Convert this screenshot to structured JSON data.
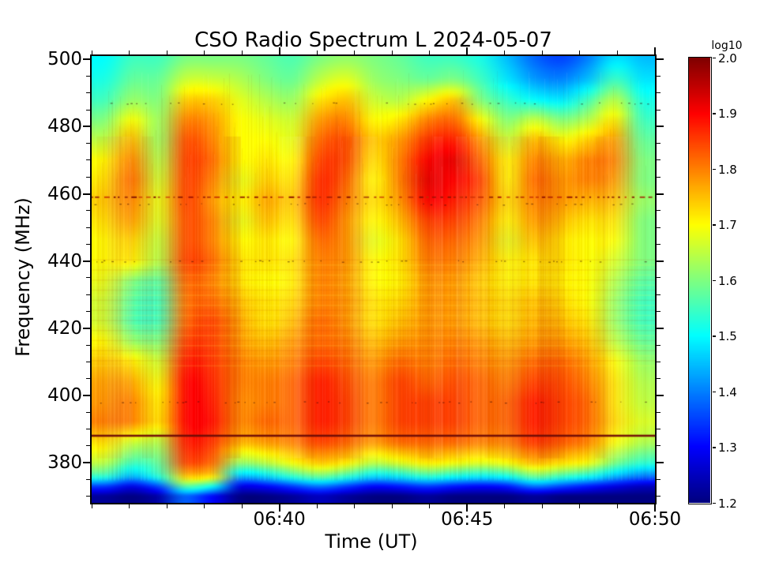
{
  "figure": {
    "title": "CSO Radio Spectrum L 2024-05-07",
    "xlabel": "Time (UT)",
    "ylabel": "Frequency (MHz)"
  },
  "colorbar": {
    "title": "log10",
    "min": 1.2,
    "max": 2.0,
    "tick_values": [
      2.0,
      1.9,
      1.8,
      1.7,
      1.6,
      1.5,
      1.4,
      1.3,
      1.2
    ],
    "tick_labels": [
      "2.0",
      "1.9",
      "1.8",
      "1.7",
      "1.6",
      "1.5",
      "1.4",
      "1.3",
      "1.2"
    ]
  },
  "chart_data": {
    "type": "heatmap",
    "colormap": "jet",
    "title": "CSO Radio Spectrum L 2024-05-07",
    "xlabel": "Time (UT)",
    "ylabel": "Frequency (MHz)",
    "value_scale": "log10",
    "value_range": [
      1.2,
      2.0
    ],
    "x_axis": {
      "unit": "UT minutes after 06:00",
      "range": [
        35,
        50
      ],
      "major_ticks": [
        {
          "minute": 40,
          "label": "06:40"
        },
        {
          "minute": 45,
          "label": "06:45"
        },
        {
          "minute": 50,
          "label": "06:50"
        }
      ],
      "minor_tick_step_minutes": 1
    },
    "y_axis": {
      "unit": "MHz",
      "range": [
        368,
        501
      ],
      "major_ticks": [
        380,
        400,
        420,
        440,
        460,
        480,
        500
      ],
      "minor_tick_step": 5
    },
    "rfi_lines": [
      {
        "freq_mhz": 388,
        "style": "solid"
      },
      {
        "freq_mhz": 459,
        "style": "dotted"
      },
      {
        "freq_mhz": 487,
        "style": "speckle"
      },
      {
        "freq_mhz": 457,
        "style": "speckle"
      },
      {
        "freq_mhz": 440,
        "style": "speckle"
      },
      {
        "freq_mhz": 398,
        "style": "speckle"
      }
    ],
    "banded_region_mhz": [
      409,
      439
    ],
    "grid": {
      "time_minutes": [
        35.0,
        35.75,
        36.5,
        37.25,
        38.0,
        38.75,
        39.5,
        40.25,
        41.0,
        41.75,
        42.5,
        43.25,
        44.0,
        44.75,
        45.5,
        46.25,
        47.0,
        47.75,
        48.5,
        49.25,
        50.0
      ],
      "freq_mhz": [
        500,
        494,
        488,
        482,
        476,
        470,
        464,
        458,
        452,
        446,
        440,
        434,
        428,
        422,
        416,
        410,
        404,
        398,
        392,
        386,
        380,
        376,
        373,
        370
      ],
      "log10_power": [
        [
          1.5,
          1.55,
          1.55,
          1.6,
          1.6,
          1.6,
          1.58,
          1.56,
          1.6,
          1.62,
          1.6,
          1.58,
          1.55,
          1.55,
          1.52,
          1.45,
          1.38,
          1.35,
          1.4,
          1.48,
          1.45
        ],
        [
          1.52,
          1.58,
          1.58,
          1.66,
          1.66,
          1.64,
          1.6,
          1.58,
          1.65,
          1.68,
          1.62,
          1.6,
          1.58,
          1.6,
          1.55,
          1.48,
          1.42,
          1.4,
          1.45,
          1.55,
          1.48
        ],
        [
          1.55,
          1.62,
          1.6,
          1.74,
          1.74,
          1.68,
          1.64,
          1.62,
          1.72,
          1.75,
          1.66,
          1.64,
          1.7,
          1.75,
          1.6,
          1.54,
          1.5,
          1.48,
          1.55,
          1.65,
          1.52
        ],
        [
          1.6,
          1.7,
          1.62,
          1.8,
          1.78,
          1.7,
          1.68,
          1.66,
          1.78,
          1.8,
          1.7,
          1.72,
          1.8,
          1.82,
          1.7,
          1.6,
          1.66,
          1.6,
          1.64,
          1.72,
          1.55
        ],
        [
          1.65,
          1.76,
          1.62,
          1.84,
          1.8,
          1.7,
          1.7,
          1.68,
          1.82,
          1.84,
          1.74,
          1.78,
          1.86,
          1.88,
          1.78,
          1.66,
          1.76,
          1.7,
          1.74,
          1.78,
          1.58
        ],
        [
          1.7,
          1.8,
          1.64,
          1.85,
          1.82,
          1.7,
          1.72,
          1.7,
          1.85,
          1.84,
          1.72,
          1.8,
          1.9,
          1.92,
          1.82,
          1.7,
          1.8,
          1.76,
          1.8,
          1.8,
          1.6
        ],
        [
          1.72,
          1.82,
          1.66,
          1.85,
          1.8,
          1.68,
          1.74,
          1.72,
          1.87,
          1.82,
          1.7,
          1.8,
          1.92,
          1.9,
          1.85,
          1.7,
          1.82,
          1.78,
          1.8,
          1.78,
          1.6
        ],
        [
          1.74,
          1.8,
          1.68,
          1.85,
          1.78,
          1.7,
          1.77,
          1.74,
          1.87,
          1.8,
          1.72,
          1.78,
          1.9,
          1.88,
          1.83,
          1.72,
          1.8,
          1.78,
          1.76,
          1.75,
          1.62
        ],
        [
          1.72,
          1.78,
          1.67,
          1.84,
          1.8,
          1.68,
          1.75,
          1.72,
          1.85,
          1.78,
          1.7,
          1.75,
          1.85,
          1.85,
          1.8,
          1.7,
          1.78,
          1.75,
          1.72,
          1.72,
          1.6
        ],
        [
          1.7,
          1.74,
          1.65,
          1.84,
          1.8,
          1.7,
          1.72,
          1.7,
          1.82,
          1.78,
          1.68,
          1.72,
          1.82,
          1.82,
          1.78,
          1.68,
          1.75,
          1.72,
          1.7,
          1.7,
          1.6
        ],
        [
          1.7,
          1.72,
          1.64,
          1.85,
          1.82,
          1.72,
          1.72,
          1.72,
          1.8,
          1.78,
          1.7,
          1.72,
          1.8,
          1.8,
          1.76,
          1.7,
          1.72,
          1.72,
          1.7,
          1.67,
          1.6
        ],
        [
          1.68,
          1.6,
          1.57,
          1.82,
          1.8,
          1.72,
          1.7,
          1.71,
          1.8,
          1.77,
          1.7,
          1.71,
          1.78,
          1.78,
          1.74,
          1.7,
          1.72,
          1.71,
          1.7,
          1.64,
          1.57
        ],
        [
          1.66,
          1.57,
          1.55,
          1.81,
          1.82,
          1.75,
          1.72,
          1.73,
          1.8,
          1.78,
          1.72,
          1.73,
          1.78,
          1.78,
          1.75,
          1.72,
          1.75,
          1.73,
          1.7,
          1.62,
          1.55
        ],
        [
          1.66,
          1.56,
          1.55,
          1.82,
          1.85,
          1.77,
          1.72,
          1.75,
          1.82,
          1.78,
          1.72,
          1.75,
          1.78,
          1.78,
          1.75,
          1.72,
          1.76,
          1.75,
          1.72,
          1.62,
          1.55
        ],
        [
          1.7,
          1.62,
          1.6,
          1.85,
          1.85,
          1.78,
          1.75,
          1.78,
          1.82,
          1.8,
          1.75,
          1.78,
          1.79,
          1.8,
          1.78,
          1.75,
          1.78,
          1.78,
          1.75,
          1.65,
          1.58
        ],
        [
          1.74,
          1.72,
          1.66,
          1.88,
          1.86,
          1.8,
          1.78,
          1.8,
          1.85,
          1.82,
          1.78,
          1.82,
          1.8,
          1.82,
          1.8,
          1.78,
          1.82,
          1.82,
          1.78,
          1.7,
          1.62
        ],
        [
          1.77,
          1.77,
          1.69,
          1.9,
          1.87,
          1.8,
          1.8,
          1.82,
          1.88,
          1.84,
          1.8,
          1.85,
          1.82,
          1.84,
          1.82,
          1.8,
          1.85,
          1.84,
          1.8,
          1.72,
          1.64
        ],
        [
          1.78,
          1.8,
          1.71,
          1.9,
          1.88,
          1.79,
          1.8,
          1.82,
          1.88,
          1.85,
          1.8,
          1.85,
          1.85,
          1.85,
          1.82,
          1.82,
          1.88,
          1.85,
          1.82,
          1.72,
          1.65
        ],
        [
          1.8,
          1.8,
          1.72,
          1.9,
          1.89,
          1.79,
          1.82,
          1.82,
          1.88,
          1.85,
          1.8,
          1.85,
          1.85,
          1.85,
          1.82,
          1.82,
          1.88,
          1.85,
          1.82,
          1.73,
          1.67
        ],
        [
          1.72,
          1.66,
          1.64,
          1.88,
          1.86,
          1.76,
          1.78,
          1.8,
          1.85,
          1.82,
          1.78,
          1.82,
          1.82,
          1.82,
          1.8,
          1.8,
          1.86,
          1.83,
          1.8,
          1.7,
          1.64
        ],
        [
          1.65,
          1.55,
          1.58,
          1.85,
          1.82,
          1.62,
          1.65,
          1.7,
          1.75,
          1.72,
          1.65,
          1.68,
          1.72,
          1.7,
          1.68,
          1.7,
          1.76,
          1.73,
          1.7,
          1.6,
          1.54
        ],
        [
          1.55,
          1.45,
          1.54,
          1.76,
          1.74,
          1.45,
          1.48,
          1.55,
          1.6,
          1.55,
          1.48,
          1.5,
          1.55,
          1.52,
          1.5,
          1.52,
          1.6,
          1.56,
          1.52,
          1.45,
          1.4
        ],
        [
          1.35,
          1.28,
          1.36,
          1.58,
          1.52,
          1.28,
          1.3,
          1.35,
          1.4,
          1.35,
          1.3,
          1.32,
          1.35,
          1.32,
          1.3,
          1.32,
          1.4,
          1.36,
          1.32,
          1.28,
          1.25
        ],
        [
          1.22,
          1.2,
          1.23,
          1.38,
          1.3,
          1.2,
          1.2,
          1.22,
          1.25,
          1.22,
          1.2,
          1.2,
          1.22,
          1.2,
          1.2,
          1.2,
          1.22,
          1.2,
          1.2,
          1.2,
          1.2
        ]
      ]
    }
  }
}
